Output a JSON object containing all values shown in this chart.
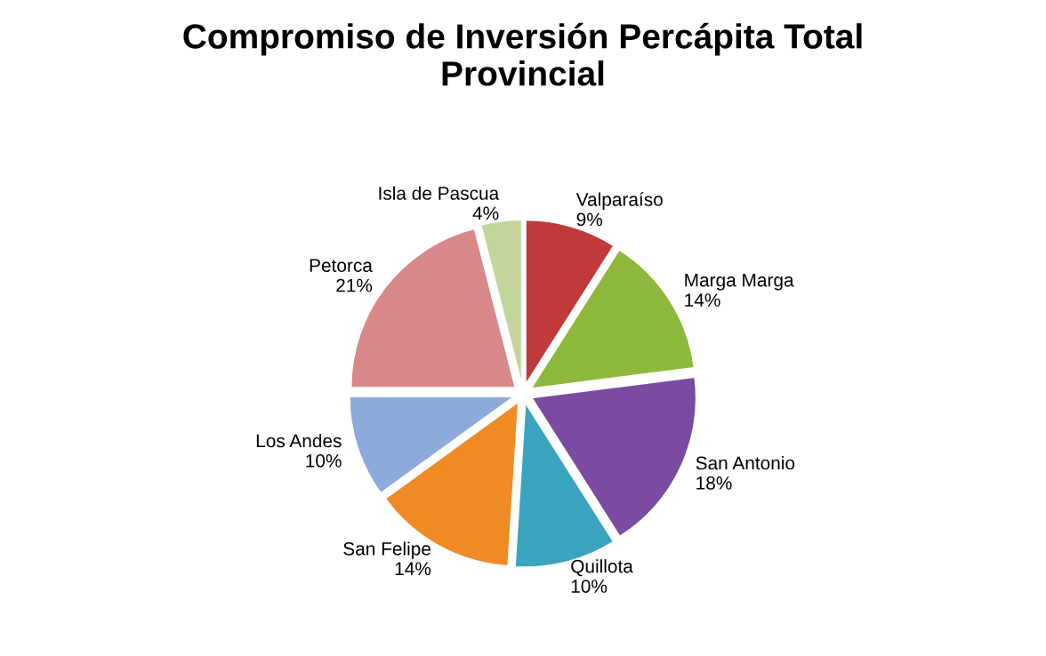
{
  "chart_data": {
    "type": "pie",
    "title": "Compromiso de Inversión Percápita Total\nProvincial",
    "categories": [
      "Valparaíso",
      "Marga Marga",
      "San Antonio",
      "Quillota",
      "San Felipe",
      "Los Andes",
      "Petorca",
      "Isla de Pascua"
    ],
    "values": [
      9,
      14,
      18,
      10,
      14,
      10,
      21,
      4
    ],
    "value_labels": [
      "9%",
      "14%",
      "18%",
      "10%",
      "14%",
      "10%",
      "21%",
      "4%"
    ],
    "colors": [
      "#c0393b",
      "#8db83c",
      "#7a4ba0",
      "#3aa3bd",
      "#f08a24",
      "#8eaadb",
      "#d9888a",
      "#c2d69b"
    ]
  }
}
